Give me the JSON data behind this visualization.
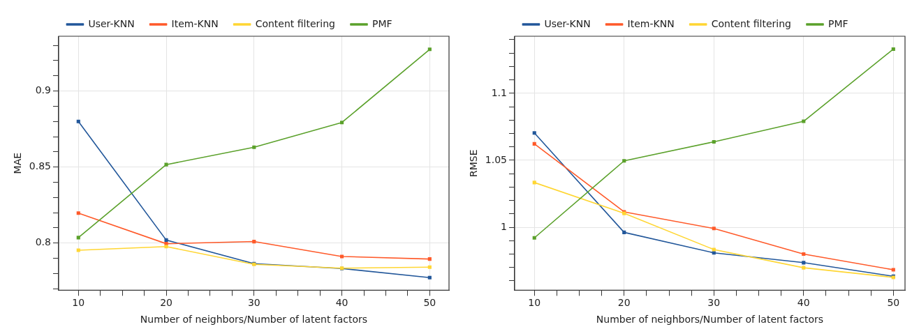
{
  "chart_data": [
    {
      "type": "line",
      "xlabel": "Number of neighbors/Number of latent factors",
      "ylabel": "MAE",
      "x": [
        10,
        20,
        30,
        40,
        50
      ],
      "series": [
        {
          "name": "User-KNN",
          "color": "#22579a",
          "values": [
            0.88,
            0.802,
            0.7865,
            0.7833,
            0.7773
          ]
        },
        {
          "name": "Item-KNN",
          "color": "#ff5a2a",
          "values": [
            0.8197,
            0.7996,
            0.801,
            0.7912,
            0.7895
          ]
        },
        {
          "name": "Content filtering",
          "color": "#ffd633",
          "values": [
            0.7953,
            0.7977,
            0.786,
            0.7835,
            0.7842
          ]
        },
        {
          "name": "PMF",
          "color": "#5ba12b",
          "values": [
            0.8036,
            0.8516,
            0.863,
            0.8793,
            0.9274
          ]
        }
      ],
      "xlim": [
        7.75,
        52.2
      ],
      "ylim": [
        0.769,
        0.936
      ],
      "xticks": [
        10,
        {
          "value": 12.5,
          "label": null
        },
        {
          "value": 15,
          "label": null
        },
        {
          "value": 17.5,
          "label": null
        },
        20,
        {
          "value": 22.5,
          "label": null
        },
        {
          "value": 25,
          "label": null
        },
        {
          "value": 27.5,
          "label": null
        },
        30,
        {
          "value": 32.5,
          "label": null
        },
        {
          "value": 35,
          "label": null
        },
        {
          "value": 37.5,
          "label": null
        },
        40,
        {
          "value": 42.5,
          "label": null
        },
        {
          "value": 45,
          "label": null
        },
        {
          "value": 47.5,
          "label": null
        },
        50
      ],
      "yticks": [
        {
          "value": 0.77,
          "label": null
        },
        {
          "value": 0.78,
          "label": null
        },
        {
          "value": 0.79,
          "label": null
        },
        0.8,
        {
          "value": 0.81,
          "label": null
        },
        {
          "value": 0.82,
          "label": null
        },
        {
          "value": 0.83,
          "label": null
        },
        {
          "value": 0.84,
          "label": null
        },
        0.85,
        {
          "value": 0.86,
          "label": null
        },
        {
          "value": 0.87,
          "label": null
        },
        {
          "value": 0.88,
          "label": null
        },
        {
          "value": 0.89,
          "label": null
        },
        0.9,
        {
          "value": 0.91,
          "label": null
        },
        {
          "value": 0.92,
          "label": null
        },
        {
          "value": 0.93,
          "label": null
        }
      ],
      "grid": true,
      "legend": "top",
      "marker": "square",
      "line_style": "solid"
    },
    {
      "type": "line",
      "xlabel": "Number of neighbors/Number of latent factors",
      "ylabel": "RMSE",
      "x": [
        10,
        20,
        30,
        40,
        50
      ],
      "series": [
        {
          "name": "User-KNN",
          "color": "#22579a",
          "values": [
            1.0704,
            0.9962,
            0.9809,
            0.9736,
            0.9634
          ]
        },
        {
          "name": "Item-KNN",
          "color": "#ff5a2a",
          "values": [
            1.0623,
            1.0115,
            0.9991,
            0.98,
            0.9683
          ]
        },
        {
          "name": "Content filtering",
          "color": "#ffd633",
          "values": [
            1.0334,
            1.0104,
            0.9834,
            0.9698,
            0.9626
          ]
        },
        {
          "name": "PMF",
          "color": "#5ba12b",
          "values": [
            0.9921,
            1.0496,
            1.0638,
            1.0791,
            1.133
          ]
        }
      ],
      "xlim": [
        7.8,
        51.3
      ],
      "ylim": [
        0.953,
        1.1426
      ],
      "xticks": [
        10,
        {
          "value": 12.5,
          "label": null
        },
        {
          "value": 15,
          "label": null
        },
        {
          "value": 17.5,
          "label": null
        },
        20,
        {
          "value": 22.5,
          "label": null
        },
        {
          "value": 25,
          "label": null
        },
        {
          "value": 27.5,
          "label": null
        },
        30,
        {
          "value": 32.5,
          "label": null
        },
        {
          "value": 35,
          "label": null
        },
        {
          "value": 37.5,
          "label": null
        },
        40,
        {
          "value": 42.5,
          "label": null
        },
        {
          "value": 45,
          "label": null
        },
        {
          "value": 47.5,
          "label": null
        },
        50
      ],
      "yticks": [
        {
          "value": 0.96,
          "label": null
        },
        {
          "value": 0.97,
          "label": null
        },
        {
          "value": 0.98,
          "label": null
        },
        {
          "value": 0.99,
          "label": null
        },
        1,
        {
          "value": 1.01,
          "label": null
        },
        {
          "value": 1.02,
          "label": null
        },
        {
          "value": 1.03,
          "label": null
        },
        {
          "value": 1.04,
          "label": null
        },
        1.05,
        {
          "value": 1.06,
          "label": null
        },
        {
          "value": 1.07,
          "label": null
        },
        {
          "value": 1.08,
          "label": null
        },
        {
          "value": 1.09,
          "label": null
        },
        1.1,
        {
          "value": 1.11,
          "label": null
        },
        {
          "value": 1.12,
          "label": null
        },
        {
          "value": 1.13,
          "label": null
        },
        {
          "value": 1.14,
          "label": null
        }
      ],
      "grid": true,
      "legend": "top",
      "marker": "square",
      "line_style": "solid"
    }
  ]
}
